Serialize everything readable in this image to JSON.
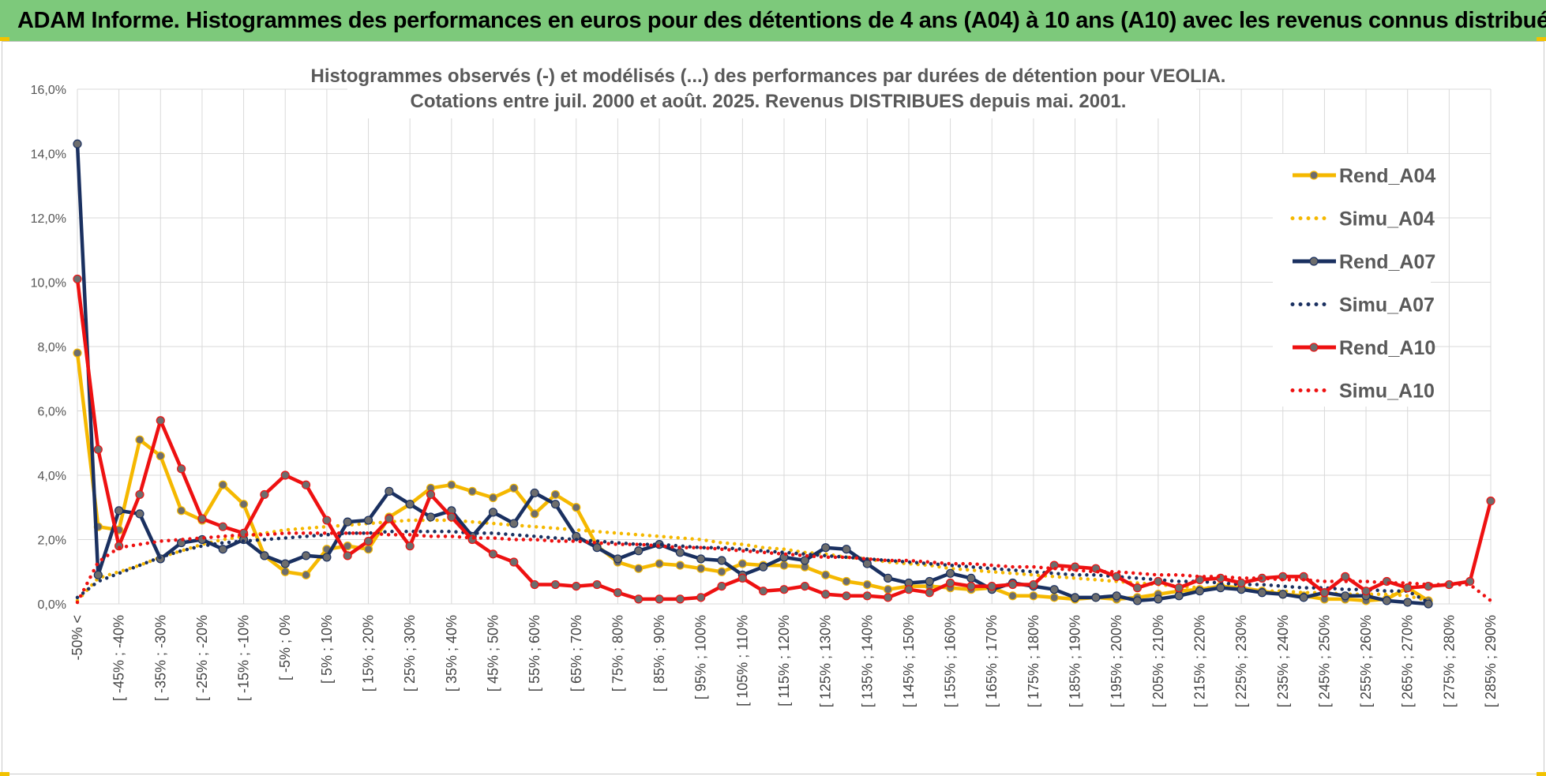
{
  "header": {
    "title": "ADAM Informe. Histogrammes des performances en euros pour des détentions de 4 ans (A04) à 10 ans (A10) avec les revenus connus distribués"
  },
  "colors": {
    "banner": "#7dc97b",
    "A04": "#f5b800",
    "A07": "#1a3060",
    "A10": "#ee1111",
    "grid": "#d9d9d9"
  },
  "chart_data": {
    "type": "line",
    "title": [
      "Histogrammes observés (-) et modélisés (...) des performances par durées de détention pour VEOLIA.",
      "Cotations entre juil. 2000 et août. 2025. Revenus DISTRIBUES depuis mai. 2001."
    ],
    "xlabel": "",
    "ylabel": "",
    "ylim": [
      0,
      16
    ],
    "yticks": [
      "0,0%",
      "2,0%",
      "4,0%",
      "6,0%",
      "8,0%",
      "10,0%",
      "12,0%",
      "14,0%",
      "16,0%"
    ],
    "grid": true,
    "legend_position": "right",
    "x_labels": [
      "-50% <",
      "[ -45% ; -40%",
      "[ -35% ; -30%",
      "[ -25% ; -20%",
      "[ -15% ; -10%",
      "[ -5% ; 0%",
      "[ 5% ; 10%",
      "[ 15% ; 20%",
      "[ 25% ; 30%",
      "[ 35% ; 40%",
      "[ 45% ; 50%",
      "[ 55% ; 60%",
      "[ 65% ; 70%",
      "[ 75% ; 80%",
      "[ 85% ; 90%",
      "[ 95% ; 100%",
      "[ 105% ; 110%",
      "[ 115% ; 120%",
      "[ 125% ; 130%",
      "[ 135% ; 140%",
      "[ 145% ; 150%",
      "[ 155% ; 160%",
      "[ 165% ; 170%",
      "[ 175% ; 180%",
      "[ 185% ; 190%",
      "[ 195% ; 200%",
      "[ 205% ; 210%",
      "[ 215% ; 220%",
      "[ 225% ; 230%",
      "[ 235% ; 240%",
      "[ 245% ; 250%",
      "[ 255% ; 260%",
      "[ 265% ; 270%",
      "[ 275% ; 280%",
      "[ 285% ; 290%"
    ],
    "series": [
      {
        "name": "Rend_A04",
        "style": "solid",
        "color": "#f5b800",
        "values": [
          7.8,
          2.4,
          2.3,
          5.1,
          4.6,
          2.9,
          2.6,
          3.7,
          3.1,
          1.5,
          1.0,
          0.9,
          1.7,
          1.8,
          1.7,
          2.7,
          3.1,
          3.6,
          3.7,
          3.5,
          3.3,
          3.6,
          2.8,
          3.4,
          3.0,
          1.8,
          1.3,
          1.1,
          1.25,
          1.2,
          1.1,
          1.0,
          1.25,
          1.2,
          1.2,
          1.15,
          0.9,
          0.7,
          0.6,
          0.45,
          0.55,
          0.55,
          0.5,
          0.45,
          0.5,
          0.25,
          0.25,
          0.2,
          0.15,
          0.2,
          0.15,
          0.2,
          0.3,
          0.4,
          0.45,
          0.55,
          0.5,
          0.4,
          0.3,
          0.25,
          0.15,
          0.15,
          0.1,
          0.15,
          0.5,
          0.1
        ]
      },
      {
        "name": "Simu_A04",
        "style": "dotted",
        "color": "#f5b800",
        "values": [
          0.1,
          0.8,
          1.0,
          1.2,
          1.45,
          1.65,
          1.85,
          2.0,
          2.1,
          2.2,
          2.3,
          2.35,
          2.4,
          2.45,
          2.5,
          2.55,
          2.6,
          2.6,
          2.6,
          2.55,
          2.5,
          2.45,
          2.4,
          2.35,
          2.3,
          2.25,
          2.2,
          2.15,
          2.1,
          2.05,
          2.0,
          1.9,
          1.85,
          1.75,
          1.7,
          1.6,
          1.55,
          1.45,
          1.4,
          1.3,
          1.25,
          1.2,
          1.1,
          1.05,
          1.0,
          0.95,
          0.9,
          0.85,
          0.8,
          0.75,
          0.7,
          0.65,
          0.6,
          0.55,
          0.5,
          0.5,
          0.45,
          0.4,
          0.4,
          0.35,
          0.35,
          0.3,
          0.3,
          0.3,
          0.25,
          0.1
        ]
      },
      {
        "name": "Rend_A07",
        "style": "solid",
        "color": "#1a3060",
        "values": [
          14.3,
          0.9,
          2.9,
          2.8,
          1.4,
          1.9,
          2.0,
          1.7,
          2.0,
          1.5,
          1.25,
          1.5,
          1.45,
          2.55,
          2.6,
          3.5,
          3.1,
          2.7,
          2.9,
          2.1,
          2.85,
          2.5,
          3.45,
          3.1,
          2.1,
          1.75,
          1.4,
          1.65,
          1.85,
          1.6,
          1.4,
          1.35,
          0.9,
          1.15,
          1.45,
          1.35,
          1.75,
          1.7,
          1.25,
          0.8,
          0.65,
          0.7,
          0.95,
          0.8,
          0.45,
          0.65,
          0.55,
          0.45,
          0.2,
          0.2,
          0.25,
          0.1,
          0.15,
          0.25,
          0.4,
          0.5,
          0.45,
          0.35,
          0.3,
          0.2,
          0.35,
          0.25,
          0.25,
          0.1,
          0.05,
          0.0
        ]
      },
      {
        "name": "Simu_A07",
        "style": "dotted",
        "color": "#1a3060",
        "values": [
          0.2,
          0.7,
          0.95,
          1.2,
          1.45,
          1.65,
          1.8,
          1.9,
          1.95,
          2.0,
          2.05,
          2.1,
          2.15,
          2.2,
          2.2,
          2.25,
          2.25,
          2.25,
          2.25,
          2.2,
          2.2,
          2.15,
          2.1,
          2.05,
          2.0,
          1.95,
          1.9,
          1.85,
          1.85,
          1.8,
          1.75,
          1.75,
          1.7,
          1.65,
          1.6,
          1.55,
          1.5,
          1.45,
          1.4,
          1.35,
          1.3,
          1.25,
          1.2,
          1.15,
          1.1,
          1.05,
          1.0,
          0.95,
          0.9,
          0.9,
          0.85,
          0.8,
          0.75,
          0.7,
          0.7,
          0.65,
          0.6,
          0.6,
          0.55,
          0.5,
          0.5,
          0.45,
          0.45,
          0.4,
          0.4,
          0.05
        ]
      },
      {
        "name": "Rend_A10",
        "style": "solid",
        "color": "#ee1111",
        "values": [
          10.1,
          4.8,
          1.8,
          3.4,
          5.7,
          4.2,
          2.65,
          2.4,
          2.2,
          3.4,
          4.0,
          3.7,
          2.6,
          1.5,
          1.95,
          2.65,
          1.8,
          3.4,
          2.7,
          2.0,
          1.55,
          1.3,
          0.6,
          0.6,
          0.55,
          0.6,
          0.35,
          0.15,
          0.15,
          0.15,
          0.2,
          0.55,
          0.8,
          0.4,
          0.45,
          0.55,
          0.3,
          0.25,
          0.25,
          0.2,
          0.45,
          0.35,
          0.65,
          0.55,
          0.55,
          0.6,
          0.6,
          1.2,
          1.15,
          1.1,
          0.85,
          0.5,
          0.7,
          0.5,
          0.75,
          0.8,
          0.65,
          0.8,
          0.85,
          0.85,
          0.35,
          0.85,
          0.4,
          0.7,
          0.5,
          0.55,
          0.6,
          0.7,
          3.2
        ]
      },
      {
        "name": "Simu_A10",
        "style": "dotted",
        "color": "#ee1111",
        "values": [
          0.05,
          1.3,
          1.75,
          1.85,
          1.95,
          2.0,
          2.05,
          2.1,
          2.15,
          2.15,
          2.2,
          2.2,
          2.2,
          2.2,
          2.2,
          2.15,
          2.15,
          2.1,
          2.1,
          2.05,
          2.05,
          2.0,
          2.0,
          1.95,
          1.95,
          1.9,
          1.85,
          1.85,
          1.8,
          1.75,
          1.75,
          1.7,
          1.65,
          1.6,
          1.55,
          1.5,
          1.45,
          1.45,
          1.4,
          1.35,
          1.35,
          1.3,
          1.25,
          1.25,
          1.2,
          1.15,
          1.15,
          1.1,
          1.05,
          1.0,
          1.0,
          0.95,
          0.9,
          0.9,
          0.85,
          0.85,
          0.8,
          0.8,
          0.75,
          0.75,
          0.7,
          0.7,
          0.7,
          0.65,
          0.65,
          0.6,
          0.6,
          0.6,
          0.1
        ]
      }
    ]
  }
}
